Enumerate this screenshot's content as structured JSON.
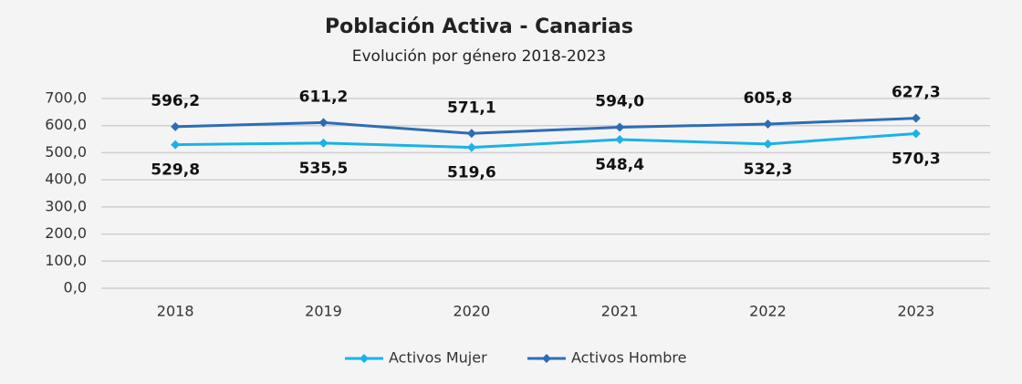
{
  "chart_data": {
    "type": "line",
    "title": "Población Activa - Canarias",
    "subtitle": "Evolución por género 2018-2023",
    "categories": [
      "2018",
      "2019",
      "2020",
      "2021",
      "2022",
      "2023"
    ],
    "series": [
      {
        "name": "Activos Mujer",
        "color": "#1ab2e8",
        "values": [
          529.8,
          535.5,
          519.6,
          548.4,
          532.3,
          570.3
        ],
        "value_labels": [
          "529,8",
          "535,5",
          "519,6",
          "548,4",
          "532,3",
          "570,3"
        ]
      },
      {
        "name": "Activos Hombre",
        "color": "#2e6db4",
        "values": [
          596.2,
          611.2,
          571.1,
          594.0,
          605.8,
          627.3
        ],
        "value_labels": [
          "596,2",
          "611,2",
          "571,1",
          "594,0",
          "605,8",
          "627,3"
        ]
      }
    ],
    "ylim": [
      0,
      700
    ],
    "yticks": [
      {
        "value": 0,
        "label": "0,0"
      },
      {
        "value": 100,
        "label": "100,0"
      },
      {
        "value": 200,
        "label": "200,0"
      },
      {
        "value": 300,
        "label": "300,0"
      },
      {
        "value": 400,
        "label": "400,0"
      },
      {
        "value": 500,
        "label": "500,0"
      },
      {
        "value": 600,
        "label": "600,0"
      },
      {
        "value": 700,
        "label": "700,0"
      }
    ],
    "grid": true,
    "legend": "bottom"
  }
}
